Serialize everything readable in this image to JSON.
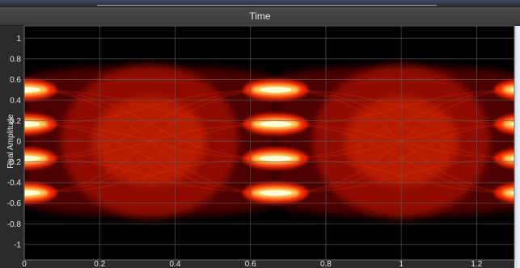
{
  "header": {
    "title": "Time"
  },
  "chart_data": {
    "type": "heatmap",
    "title": "Time",
    "xlabel": "",
    "ylabel": "Real Amplitude",
    "xlim": [
      0,
      1.3
    ],
    "ylim": [
      -1.15,
      1.12
    ],
    "x_ticks": [
      0,
      0.2,
      0.4,
      0.6,
      0.8,
      1,
      1.2
    ],
    "x_tick_labels": [
      "0",
      "0.2",
      "0.4",
      "0.6",
      "0.8",
      "1",
      "1.2"
    ],
    "y_ticks": [
      1,
      0.8,
      0.6,
      0.4,
      0.2,
      0,
      -0.2,
      -0.4,
      -0.6,
      -0.8,
      -1
    ],
    "y_tick_labels": [
      "1",
      "0.8",
      "0.6",
      "0.4",
      "0.2",
      "0",
      "-0.2",
      "-0.4",
      "-0.6",
      "-0.8",
      "-1"
    ],
    "grid": true,
    "description_values": {
      "symbol_levels": [
        -0.5,
        -0.167,
        0.167,
        0.5
      ],
      "eye_crossings_time": [
        0,
        0.667,
        1.333
      ],
      "eye_center_time": [
        0.333,
        1.0
      ]
    },
    "colors": {
      "background": "#000000",
      "low": "#5a0000",
      "mid": "#ff2a00",
      "high": "#ffe060",
      "peak": "#ffffe0",
      "grid": "#5a5a5a"
    }
  }
}
